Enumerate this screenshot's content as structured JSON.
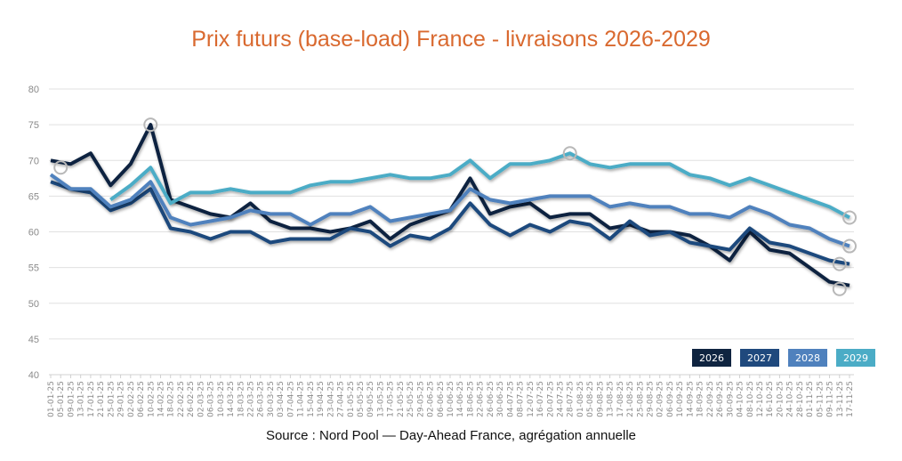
{
  "chart_data": {
    "type": "line",
    "title": "Prix futurs (base-load) France - livraisons 2026-2029",
    "source": "Source : Nord Pool — Day-Ahead France, agrégation annuelle",
    "ylim": [
      40,
      80
    ],
    "yticks": [
      40,
      45,
      50,
      55,
      60,
      65,
      70,
      75,
      80
    ],
    "grid": true,
    "legend_position": "bottom-right",
    "xtick_labels": [
      "01-01-25",
      "05-01-25",
      "09-01-25",
      "13-01-25",
      "17-01-25",
      "21-01-25",
      "25-01-25",
      "29-01-25",
      "02-02-25",
      "06-02-25",
      "10-02-25",
      "14-02-25",
      "18-02-25",
      "22-02-25",
      "26-02-25",
      "02-03-25",
      "06-03-25",
      "10-03-25",
      "14-03-25",
      "18-03-25",
      "22-03-25",
      "26-03-25",
      "30-03-25",
      "03-04-25",
      "07-04-25",
      "11-04-25",
      "15-04-25",
      "19-04-25",
      "23-04-25",
      "27-04-25",
      "01-05-25",
      "05-05-25",
      "09-05-25",
      "13-05-25",
      "17-05-25",
      "21-05-25",
      "25-05-25",
      "29-05-25",
      "02-06-25",
      "06-06-25",
      "10-06-25",
      "14-06-25",
      "18-06-25",
      "22-06-25",
      "26-06-25",
      "30-06-25",
      "04-07-25",
      "08-07-25",
      "12-07-25",
      "16-07-25",
      "20-07-25",
      "24-07-25",
      "28-07-25",
      "01-08-25",
      "05-08-25",
      "09-08-25",
      "13-08-25",
      "17-08-25",
      "21-08-25",
      "25-08-25",
      "29-08-25",
      "02-09-25",
      "06-09-25",
      "10-09-25",
      "14-09-25",
      "18-09-25",
      "22-09-25",
      "26-09-25",
      "30-09-25",
      "04-10-25",
      "08-10-25",
      "12-10-25",
      "16-10-25",
      "20-10-25",
      "24-10-25",
      "28-10-25",
      "01-11-25",
      "05-11-25",
      "09-11-25",
      "13-11-25",
      "17-11-25"
    ],
    "x": [
      "01-01-25",
      "09-01-25",
      "17-01-25",
      "25-01-25",
      "02-02-25",
      "10-02-25",
      "18-02-25",
      "26-02-25",
      "06-03-25",
      "14-03-25",
      "22-03-25",
      "30-03-25",
      "07-04-25",
      "15-04-25",
      "23-04-25",
      "01-05-25",
      "09-05-25",
      "17-05-25",
      "25-05-25",
      "02-06-25",
      "10-06-25",
      "18-06-25",
      "26-06-25",
      "04-07-25",
      "12-07-25",
      "20-07-25",
      "28-07-25",
      "05-08-25",
      "13-08-25",
      "21-08-25",
      "29-08-25",
      "06-09-25",
      "14-09-25",
      "22-09-25",
      "30-09-25",
      "08-10-25",
      "16-10-25",
      "24-10-25",
      "01-11-25",
      "09-11-25",
      "17-11-25"
    ],
    "series": [
      {
        "name": "2026",
        "color": "#0f2440",
        "values": [
          70,
          69.5,
          71,
          66.5,
          69.5,
          75,
          64.5,
          63.5,
          62.5,
          62,
          64,
          61.5,
          60.5,
          60.5,
          60,
          60.5,
          61.5,
          59,
          61,
          62,
          63,
          67.5,
          62.5,
          63.5,
          64,
          62,
          62.5,
          62.5,
          60.5,
          61,
          60,
          60,
          59.5,
          58,
          56,
          60,
          57.5,
          57,
          55,
          53,
          52.5
        ]
      },
      {
        "name": "2027",
        "color": "#1f497d",
        "values": [
          67,
          66,
          65.5,
          63,
          64,
          66,
          60.5,
          60,
          59,
          60,
          60,
          58.5,
          59,
          59,
          59,
          60.5,
          60,
          58,
          59.5,
          59,
          60.5,
          64,
          61,
          59.5,
          61,
          60,
          61.5,
          61,
          59,
          61.5,
          59.5,
          60,
          58.5,
          58,
          57.5,
          60.5,
          58.5,
          58,
          57,
          56,
          55.5
        ]
      },
      {
        "name": "2028",
        "color": "#4f81bd",
        "values": [
          68,
          66,
          66,
          63.5,
          64.5,
          67,
          62,
          61,
          61.5,
          62,
          63,
          62.5,
          62.5,
          61,
          62.5,
          62.5,
          63.5,
          61.5,
          62,
          62.5,
          63,
          66,
          64.5,
          64,
          64.5,
          65,
          65,
          65,
          63.5,
          64,
          63.5,
          63.5,
          62.5,
          62.5,
          62,
          63.5,
          62.5,
          61,
          60.5,
          59,
          58
        ]
      },
      {
        "name": "2029",
        "color": "#4bacc6",
        "values": [
          null,
          null,
          null,
          64.5,
          66.5,
          69,
          64,
          65.5,
          65.5,
          66,
          65.5,
          65.5,
          65.5,
          66.5,
          67,
          67,
          67.5,
          68,
          67.5,
          67.5,
          68,
          70,
          67.5,
          69.5,
          69.5,
          70,
          71,
          69.5,
          69,
          69.5,
          69.5,
          69.5,
          68,
          67.5,
          66.5,
          67.5,
          66.5,
          65.5,
          64.5,
          63.5,
          62
        ]
      }
    ],
    "highlighted_points": [
      {
        "series": "2026",
        "date": "10-02-25",
        "value": 75
      },
      {
        "series": "2028",
        "date": "05-01-25",
        "value": 69
      },
      {
        "series": "2029",
        "date": "28-07-25",
        "value": 71
      },
      {
        "series": "2029",
        "date": "17-11-25",
        "value": 62
      },
      {
        "series": "2028",
        "date": "17-11-25",
        "value": 58
      },
      {
        "series": "2027",
        "date": "13-11-25",
        "value": 55.5
      },
      {
        "series": "2026",
        "date": "13-11-25",
        "value": 52
      }
    ]
  }
}
